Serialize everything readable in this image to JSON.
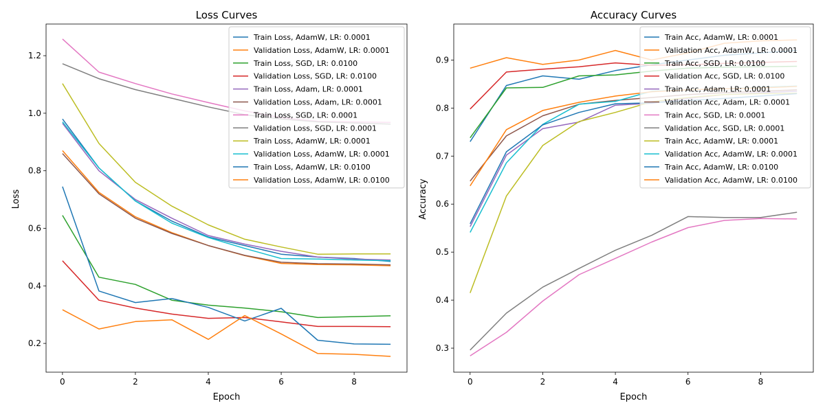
{
  "chart_data": [
    {
      "type": "line",
      "title": "Loss Curves",
      "xlabel": "Epoch",
      "ylabel": "Loss",
      "xlim": [
        -0.45,
        9.45
      ],
      "ylim": [
        0.1,
        1.31
      ],
      "xticks": [
        0,
        2,
        4,
        6,
        8
      ],
      "xtick_labels": [
        "0",
        "2",
        "4",
        "6",
        "8"
      ],
      "yticks": [
        0.2,
        0.4,
        0.6,
        0.8,
        1.0,
        1.2
      ],
      "ytick_labels": [
        "0.2",
        "0.4",
        "0.6",
        "0.8",
        "1.0",
        "1.2"
      ],
      "grid": false,
      "legend_position": "top-right",
      "x": [
        0,
        1,
        2,
        3,
        4,
        5,
        6,
        7,
        8,
        9
      ],
      "series": [
        {
          "name": "Train Loss, AdamW, LR: 0.0001",
          "color": "#1f77b4",
          "values": [
            0.98,
            0.81,
            0.695,
            0.625,
            0.57,
            0.54,
            0.51,
            0.5,
            0.495,
            0.485
          ]
        },
        {
          "name": "Validation Loss, AdamW, LR: 0.0001",
          "color": "#ff7f0e",
          "values": [
            0.87,
            0.725,
            0.64,
            0.585,
            0.54,
            0.505,
            0.478,
            0.474,
            0.473,
            0.47
          ]
        },
        {
          "name": "Train Loss, SGD, LR: 0.0100",
          "color": "#2ca02c",
          "values": [
            0.645,
            0.43,
            0.405,
            0.35,
            0.333,
            0.323,
            0.31,
            0.29,
            0.293,
            0.296
          ]
        },
        {
          "name": "Validation Loss, SGD, LR: 0.0100",
          "color": "#d62728",
          "values": [
            0.487,
            0.35,
            0.323,
            0.302,
            0.287,
            0.29,
            0.275,
            0.259,
            0.259,
            0.258
          ]
        },
        {
          "name": "Train Loss, Adam, LR: 0.0001",
          "color": "#9467bd",
          "values": [
            0.965,
            0.8,
            0.7,
            0.635,
            0.575,
            0.545,
            0.52,
            0.5,
            0.493,
            0.49
          ]
        },
        {
          "name": "Validation Loss, Adam, LR: 0.0001",
          "color": "#8c564b",
          "values": [
            0.86,
            0.72,
            0.635,
            0.582,
            0.54,
            0.506,
            0.482,
            0.477,
            0.476,
            0.473
          ]
        },
        {
          "name": "Train Loss, SGD, LR: 0.0001",
          "color": "#e377c2",
          "values": [
            1.258,
            1.143,
            1.103,
            1.067,
            1.037,
            1.008,
            0.985,
            0.972,
            0.97,
            0.968
          ]
        },
        {
          "name": "Validation Loss, SGD, LR: 0.0001",
          "color": "#7f7f7f",
          "values": [
            1.172,
            1.12,
            1.082,
            1.052,
            1.022,
            0.995,
            0.98,
            0.97,
            0.966,
            0.962
          ]
        },
        {
          "name": "Train Loss, AdamW, LR: 0.0001",
          "color": "#bcbd22",
          "values": [
            1.103,
            0.895,
            0.76,
            0.677,
            0.612,
            0.562,
            0.535,
            0.51,
            0.511,
            0.511
          ]
        },
        {
          "name": "Validation Loss, AdamW, LR: 0.0001",
          "color": "#17becf",
          "values": [
            0.97,
            0.81,
            0.695,
            0.618,
            0.568,
            0.53,
            0.495,
            0.493,
            0.49,
            0.487
          ]
        },
        {
          "name": "Train Loss, AdamW, LR: 0.0100",
          "color": "#1f77b4",
          "values": [
            0.745,
            0.382,
            0.342,
            0.356,
            0.325,
            0.278,
            0.322,
            0.211,
            0.198,
            0.197
          ]
        },
        {
          "name": "Validation Loss, AdamW, LR: 0.0100",
          "color": "#ff7f0e",
          "values": [
            0.317,
            0.25,
            0.276,
            0.282,
            0.214,
            0.297,
            0.233,
            0.165,
            0.162,
            0.155
          ]
        }
      ]
    },
    {
      "type": "line",
      "title": "Accuracy Curves",
      "xlabel": "Epoch",
      "ylabel": "Accuracy",
      "xlim": [
        -0.45,
        9.45
      ],
      "ylim": [
        0.25,
        0.975
      ],
      "xticks": [
        0,
        2,
        4,
        6,
        8
      ],
      "xtick_labels": [
        "0",
        "2",
        "4",
        "6",
        "8"
      ],
      "yticks": [
        0.3,
        0.4,
        0.5,
        0.6,
        0.7,
        0.8,
        0.9
      ],
      "ytick_labels": [
        "0.3",
        "0.4",
        "0.5",
        "0.6",
        "0.7",
        "0.8",
        "0.9"
      ],
      "grid": false,
      "legend_position": "top-right",
      "x": [
        0,
        1,
        2,
        3,
        4,
        5,
        6,
        7,
        8,
        9
      ],
      "series": [
        {
          "name": "Train Acc, AdamW, LR: 0.0001",
          "color": "#1f77b4",
          "values": [
            0.73,
            0.847,
            0.867,
            0.86,
            0.878,
            0.89,
            0.9,
            0.91,
            0.915,
            0.92
          ]
        },
        {
          "name": "Validation Acc, AdamW, LR: 0.0001",
          "color": "#ff7f0e",
          "values": [
            0.883,
            0.905,
            0.891,
            0.9,
            0.92,
            0.9,
            0.915,
            0.935,
            0.94,
            0.942
          ]
        },
        {
          "name": "Train Acc, SGD, LR: 0.0100",
          "color": "#2ca02c",
          "values": [
            0.738,
            0.842,
            0.843,
            0.867,
            0.869,
            0.877,
            0.883,
            0.885,
            0.886,
            0.887
          ]
        },
        {
          "name": "Validation Acc, SGD, LR: 0.0100",
          "color": "#d62728",
          "values": [
            0.798,
            0.875,
            0.881,
            0.886,
            0.894,
            0.889,
            0.89,
            0.893,
            0.895,
            0.897
          ]
        },
        {
          "name": "Train Acc, Adam, LR: 0.0001",
          "color": "#9467bd",
          "values": [
            0.553,
            0.702,
            0.757,
            0.771,
            0.806,
            0.81,
            0.82,
            0.828,
            0.832,
            0.835
          ]
        },
        {
          "name": "Validation Acc, Adam, LR: 0.0001",
          "color": "#8c564b",
          "values": [
            0.648,
            0.742,
            0.784,
            0.808,
            0.816,
            0.822,
            0.828,
            0.832,
            0.835,
            0.838
          ]
        },
        {
          "name": "Train Acc, SGD, LR: 0.0001",
          "color": "#e377c2",
          "values": [
            0.284,
            0.333,
            0.398,
            0.453,
            0.487,
            0.521,
            0.551,
            0.566,
            0.57,
            0.569
          ]
        },
        {
          "name": "Validation Acc, SGD, LR: 0.0001",
          "color": "#7f7f7f",
          "values": [
            0.296,
            0.373,
            0.427,
            0.466,
            0.504,
            0.535,
            0.574,
            0.572,
            0.572,
            0.583
          ]
        },
        {
          "name": "Train Acc, AdamW, LR: 0.0001",
          "color": "#bcbd22",
          "values": [
            0.415,
            0.617,
            0.722,
            0.772,
            0.791,
            0.813,
            0.822,
            0.828,
            0.83,
            0.831
          ]
        },
        {
          "name": "Validation Acc, AdamW, LR: 0.0001",
          "color": "#17becf",
          "values": [
            0.541,
            0.686,
            0.766,
            0.808,
            0.814,
            0.835,
            0.838,
            0.84,
            0.843,
            0.846
          ]
        },
        {
          "name": "Train Acc, AdamW, LR: 0.0100",
          "color": "#1f77b4",
          "values": [
            0.559,
            0.709,
            0.765,
            0.791,
            0.809,
            0.811,
            0.816,
            0.82,
            0.825,
            0.83
          ]
        },
        {
          "name": "Validation Acc, AdamW, LR: 0.0100",
          "color": "#ff7f0e",
          "values": [
            0.638,
            0.755,
            0.795,
            0.812,
            0.825,
            0.834,
            0.838,
            0.84,
            0.842,
            0.845
          ]
        }
      ]
    }
  ]
}
